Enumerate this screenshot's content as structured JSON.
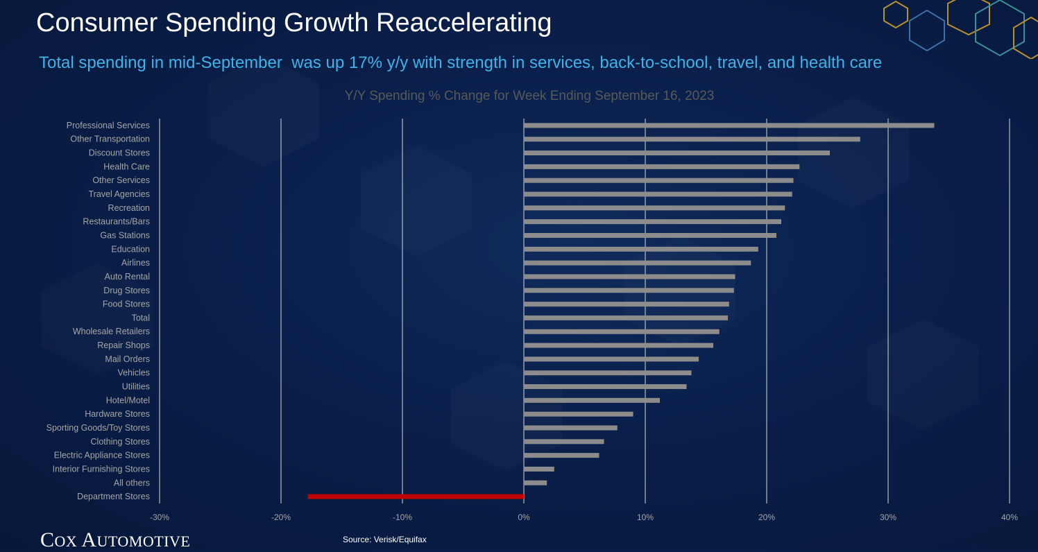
{
  "slide": {
    "title": "Consumer Spending Growth Reaccelerating",
    "subtitle": "Total spending in mid-September  was up 17% y/y with strength in services, back-to-school, travel, and health care",
    "logo_text": "Cox Automotive",
    "source": "Source: Verisk/Equifax"
  },
  "colors": {
    "background": "#0a1f4a",
    "positive_bar": "#8c8c8c",
    "negative_bar": "#c00000",
    "gridline": "#d9d9d9",
    "title": "#ffffff",
    "subtitle": "#3fb3e8",
    "chart_text": "#a6a6a6"
  },
  "chart_data": {
    "type": "bar",
    "orientation": "horizontal",
    "title": "Y/Y Spending % Change for Week Ending September 16, 2023",
    "xlabel": "",
    "ylabel": "",
    "xlim": [
      -30,
      40
    ],
    "x_ticks": [
      -30,
      -20,
      -10,
      0,
      10,
      20,
      30,
      40
    ],
    "x_tick_labels": [
      "-30%",
      "-20%",
      "-10%",
      "0%",
      "10%",
      "20%",
      "30%",
      "40%"
    ],
    "grid": "vertical",
    "legend": "none",
    "categories": [
      "Professional Services",
      "Other Transportation",
      "Discount Stores",
      "Health Care",
      "Other Services",
      "Travel Agencies",
      "Recreation",
      "Restaurants/Bars",
      "Gas Stations",
      "Education",
      "Airlines",
      "Auto Rental",
      "Drug Stores",
      "Food Stores",
      "Total",
      "Wholesale Retailers",
      "Repair Shops",
      "Mail Orders",
      "Vehicles",
      "Utilities",
      "Hotel/Motel",
      "Hardware Stores",
      "Sporting Goods/Toy Stores",
      "Clothing Stores",
      "Electric Appliance Stores",
      "Interior Furnishing Stores",
      "All others",
      "Department Stores"
    ],
    "values": [
      33.8,
      27.7,
      25.2,
      22.7,
      22.2,
      22.1,
      21.5,
      21.2,
      20.8,
      19.3,
      18.7,
      17.4,
      17.3,
      16.9,
      16.8,
      16.1,
      15.6,
      14.4,
      13.8,
      13.4,
      11.2,
      9.0,
      7.7,
      6.6,
      6.2,
      2.5,
      1.9,
      -17.8
    ]
  }
}
